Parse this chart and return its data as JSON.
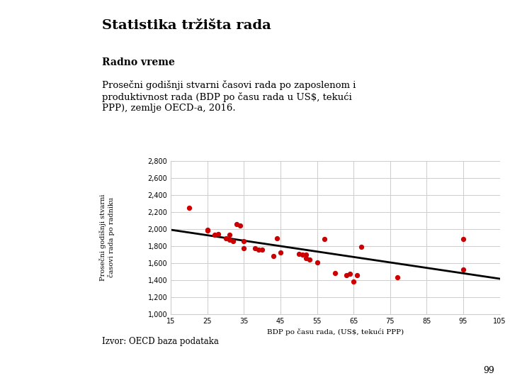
{
  "title": "Statistika tržišta rada",
  "subtitle1": "Radno vreme",
  "subtitle2": "Prosečni godišnji stvarni časovi rada po zaposlenom i\nproduktivnost rada (BDP po času rada u US$, tekući\nPPP), zemlje OECD-a, 2016.",
  "xlabel": "BDP po času rada, (US$, tekući PPP)",
  "ylabel": "Prosečni godišnji stvarni\nčasovi rada po radniku",
  "source": "Izvor: OECD baza podataka",
  "page_number": "99",
  "scatter_x": [
    20,
    25,
    25,
    27,
    28,
    30,
    31,
    31,
    32,
    33,
    34,
    35,
    35,
    38,
    39,
    40,
    43,
    44,
    45,
    50,
    51,
    52,
    52,
    53,
    55,
    57,
    60,
    63,
    64,
    65,
    66,
    67,
    77,
    95,
    95
  ],
  "scatter_y": [
    2250,
    1990,
    1980,
    1930,
    1940,
    1890,
    1870,
    1930,
    1860,
    2060,
    2040,
    1775,
    1855,
    1775,
    1760,
    1760,
    1680,
    1890,
    1720,
    1710,
    1700,
    1660,
    1700,
    1640,
    1610,
    1880,
    1480,
    1460,
    1475,
    1380,
    1460,
    1790,
    1430,
    1520,
    1880
  ],
  "trendline_x": [
    15,
    105
  ],
  "trendline_y": [
    1990,
    1415
  ],
  "dot_color": "#cc0000",
  "line_color": "#000000",
  "background_color": "#ffffff",
  "xlim": [
    15,
    105
  ],
  "ylim": [
    1000,
    2800
  ],
  "xticks": [
    15,
    25,
    35,
    45,
    55,
    65,
    75,
    85,
    95,
    105
  ],
  "yticks": [
    1000,
    1200,
    1400,
    1600,
    1800,
    2000,
    2200,
    2400,
    2600,
    2800
  ],
  "grid_color": "#cccccc",
  "title_fontsize": 14,
  "subtitle1_fontsize": 10,
  "subtitle2_fontsize": 9.5,
  "axis_fontsize": 7.5,
  "tick_fontsize": 7,
  "ylabel_fontsize": 7
}
